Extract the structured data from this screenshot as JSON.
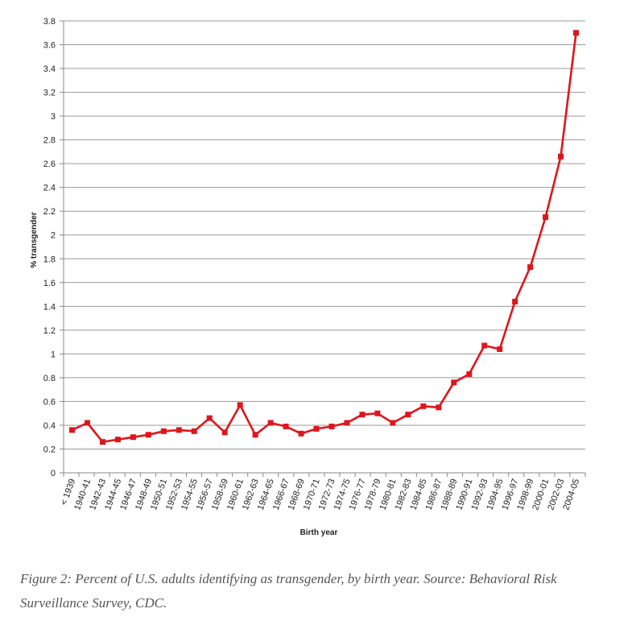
{
  "chart_data": {
    "type": "line",
    "title": "",
    "xlabel": "Birth year",
    "ylabel": "% transgender",
    "ylim": [
      0,
      3.8
    ],
    "ytick_step": 0.2,
    "yticks": [
      "0",
      "0.2",
      "0.4",
      "0.6",
      "0.8",
      "1",
      "1.2",
      "1.4",
      "1.6",
      "1.8",
      "2",
      "2.2",
      "2.4",
      "2.6",
      "2.8",
      "3",
      "3.2",
      "3.4",
      "3.6",
      "3.8"
    ],
    "grid": "horizontal",
    "legend": "none",
    "color": "#e0151c",
    "categories": [
      "< 1939",
      "1940-41",
      "1942-43",
      "1944-45",
      "1946-47",
      "1948-49",
      "1950-51",
      "1952-53",
      "1954-55",
      "1956-57",
      "1958-59",
      "1960-61",
      "1962-63",
      "1964-65",
      "1966-67",
      "1968-69",
      "1970-71",
      "1972-73",
      "1974-75",
      "1976-77",
      "1978-79",
      "1980-81",
      "1982-83",
      "1984-85",
      "1986-87",
      "1988-89",
      "1990-91",
      "1992-93",
      "1994-95",
      "1996-97",
      "1998-99",
      "2000-01",
      "2002-03",
      "2004-05"
    ],
    "series": [
      {
        "values": [
          0.36,
          0.42,
          0.26,
          0.28,
          0.3,
          0.32,
          0.35,
          0.36,
          0.35,
          0.46,
          0.34,
          0.57,
          0.32,
          0.42,
          0.39,
          0.33,
          0.37,
          0.39,
          0.42,
          0.49,
          0.5,
          0.42,
          0.49,
          0.56,
          0.55,
          0.76,
          0.83,
          1.07,
          1.04,
          1.44,
          1.73,
          2.15,
          2.66,
          3.7
        ]
      }
    ]
  },
  "caption": "Figure 2: Percent of U.S. adults identifying as transgender, by birth year. Source: Behavioral Risk Surveillance Survey, CDC."
}
